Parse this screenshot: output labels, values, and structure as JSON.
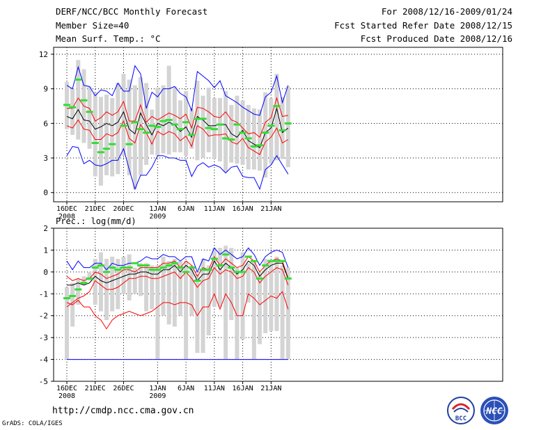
{
  "header": {
    "title": "DERF/NCC/BCC Monthly Forecast",
    "member_size": "Member Size=40",
    "variable1": "Mean Surf. Temp.: °C",
    "period": "For 2008/12/16-2009/01/24",
    "started": "Fcst Started Refer Date 2008/12/15",
    "produced": "Fcst Produced Date 2008/12/16"
  },
  "panel2_label": "Prec.: log(mm/d)",
  "footer": {
    "url": "http://cmdp.ncc.cma.gov.cn",
    "credit": "GrADS: COLA/IGES"
  },
  "logos": {
    "left": "BCC",
    "right": "NCC"
  },
  "colors": {
    "box": "#d4d4d4",
    "median": "#000000",
    "mid": "#ff0000",
    "outer": "#0000ff",
    "obs": "#33dd33"
  },
  "chart_data": [
    {
      "type": "box-ensemble",
      "title": "Mean Surf. Temp.: °C",
      "ylim": [
        -0.8,
        12.6
      ],
      "yticks": [
        0,
        3,
        6,
        9,
        12
      ],
      "x_ticks": [
        {
          "day": 0,
          "label": "16DEC",
          "sub": "2008"
        },
        {
          "day": 5,
          "label": "21DEC",
          "sub": ""
        },
        {
          "day": 10,
          "label": "26DEC",
          "sub": ""
        },
        {
          "day": 16,
          "label": "1JAN",
          "sub": "2009"
        },
        {
          "day": 21,
          "label": "6JAN",
          "sub": ""
        },
        {
          "day": 26,
          "label": "11JAN",
          "sub": ""
        },
        {
          "day": 31,
          "label": "16JAN",
          "sub": ""
        },
        {
          "day": 36,
          "label": "21JAN",
          "sub": ""
        }
      ],
      "box_low": [
        5.5,
        5.0,
        4.6,
        4.3,
        3.8,
        1.4,
        0.6,
        1.5,
        1.4,
        1.6,
        3.2,
        1.5,
        0.3,
        1.5,
        2.4,
        3.3,
        3.2,
        3.4,
        3.3,
        3.5,
        3.5,
        3.2,
        3.8,
        2.8,
        3.0,
        3.5,
        3.0,
        2.7,
        1.8,
        2.6,
        2.5,
        2.4,
        2.0,
        2.0,
        1.9,
        1.3,
        2.5,
        2.8,
        2.9,
        2.2
      ],
      "box_high": [
        9.6,
        9.0,
        11.5,
        10.7,
        9.2,
        8.7,
        8.3,
        8.5,
        8.2,
        9.5,
        10.3,
        9.8,
        9.3,
        10.0,
        9.5,
        7.2,
        9.1,
        9.3,
        11.0,
        9.2,
        8.0,
        8.8,
        7.3,
        9.7,
        8.4,
        9.1,
        8.2,
        8.2,
        8.8,
        7.6,
        8.4,
        8.0,
        7.6,
        7.3,
        7.2,
        8.7,
        8.2,
        10.3,
        8.3,
        9.2
      ],
      "upper_blue": [
        9.3,
        9.0,
        10.9,
        9.3,
        9.2,
        8.4,
        8.9,
        8.8,
        8.4,
        9.5,
        8.8,
        8.8,
        11.0,
        10.3,
        7.3,
        8.7,
        8.3,
        9.0,
        9.0,
        9.2,
        8.6,
        8.3,
        7.1,
        10.5,
        10.1,
        9.7,
        9.1,
        9.7,
        8.4,
        8.1,
        7.8,
        7.4,
        7.1,
        6.8,
        6.7,
        8.3,
        8.7,
        10.1,
        7.8,
        9.3
      ],
      "upper_red": [
        7.3,
        7.3,
        8.2,
        7.5,
        7.3,
        6.2,
        6.5,
        7.0,
        6.7,
        7.0,
        7.9,
        6.2,
        6.2,
        7.6,
        6.1,
        6.6,
        6.3,
        6.6,
        6.9,
        6.7,
        6.4,
        6.8,
        5.6,
        7.4,
        7.3,
        7.0,
        6.6,
        6.5,
        7.0,
        6.3,
        6.1,
        5.6,
        5.1,
        5.2,
        4.8,
        6.1,
        6.5,
        8.2,
        6.6,
        6.7
      ],
      "median": [
        6.6,
        6.4,
        7.2,
        6.3,
        6.2,
        5.5,
        5.7,
        6.0,
        5.8,
        6.1,
        7.0,
        5.5,
        5.1,
        6.9,
        5.9,
        5.0,
        6.0,
        5.8,
        6.1,
        5.9,
        5.3,
        5.7,
        4.8,
        6.6,
        6.3,
        5.8,
        5.8,
        5.9,
        5.9,
        5.1,
        4.8,
        5.4,
        4.5,
        4.2,
        3.9,
        5.2,
        5.6,
        7.3,
        5.2,
        5.6
      ],
      "lower_red": [
        5.8,
        5.6,
        6.3,
        5.5,
        5.4,
        4.6,
        4.6,
        5.1,
        4.9,
        5.2,
        6.2,
        4.7,
        4.3,
        5.9,
        5.2,
        4.2,
        5.3,
        5.0,
        5.3,
        5.1,
        4.5,
        4.9,
        4.0,
        5.8,
        5.5,
        4.9,
        5.0,
        5.0,
        5.1,
        4.4,
        4.2,
        4.7,
        3.9,
        3.6,
        3.3,
        4.4,
        4.8,
        5.6,
        4.3,
        4.6
      ],
      "lower_blue": [
        3.2,
        4.0,
        3.9,
        2.5,
        2.8,
        2.4,
        2.3,
        2.5,
        2.8,
        2.8,
        3.8,
        2.0,
        0.3,
        1.5,
        1.5,
        2.2,
        3.2,
        3.2,
        3.0,
        3.0,
        2.8,
        2.8,
        1.4,
        2.3,
        2.6,
        2.2,
        2.4,
        2.2,
        1.7,
        2.2,
        2.3,
        1.4,
        1.3,
        1.3,
        0.3,
        2.0,
        2.4,
        3.2,
        2.4,
        1.6
      ],
      "observed": [
        7.6,
        7.4,
        9.8,
        8.0,
        7.0,
        4.3,
        3.5,
        3.8,
        4.2,
        null,
        5.8,
        4.2,
        6.1,
        5.5,
        5.2,
        5.8,
        5.7,
        6.2,
        6.3,
        5.9,
        5.5,
        6.1,
        5.0,
        6.4,
        6.4,
        5.6,
        5.5,
        5.9,
        4.7,
        4.6,
        5.9,
        5.2,
        4.7,
        4.0,
        4.1,
        5.2,
        5.8,
        7.5,
        5.4,
        6.0
      ]
    },
    {
      "type": "box-ensemble",
      "title": "Prec.: log(mm/d)",
      "ylim": [
        -5,
        2
      ],
      "yticks": [
        -5,
        -4,
        -3,
        -2,
        -1,
        0,
        1,
        2
      ],
      "x_ticks": [
        {
          "day": 0,
          "label": "16DEC",
          "sub": "2008"
        },
        {
          "day": 5,
          "label": "21DEC",
          "sub": ""
        },
        {
          "day": 10,
          "label": "26DEC",
          "sub": ""
        },
        {
          "day": 16,
          "label": "1JAN",
          "sub": "2009"
        },
        {
          "day": 21,
          "label": "6JAN",
          "sub": ""
        },
        {
          "day": 26,
          "label": "11JAN",
          "sub": ""
        },
        {
          "day": 31,
          "label": "16JAN",
          "sub": ""
        },
        {
          "day": 36,
          "label": "21JAN",
          "sub": ""
        }
      ],
      "box_low": [
        -4,
        -2.5,
        -1.5,
        -0.6,
        -0.4,
        -1.5,
        -1.8,
        -2.2,
        -1.8,
        -1.7,
        -1.0,
        -1.3,
        -1.0,
        -1.1,
        -1.8,
        -1.7,
        -4,
        -2,
        -2.4,
        -2.5,
        -2,
        -4,
        -2,
        -3.7,
        -3.7,
        -2.9,
        -1.6,
        -1.6,
        -4,
        -2.2,
        -4,
        -3.1,
        -1.4,
        -4,
        -3.3,
        -2.8,
        -2.7,
        -2.7,
        -4,
        -4
      ],
      "box_high": [
        -0.7,
        -0.5,
        -0.3,
        -0.2,
        0.0,
        0.6,
        0.9,
        0.6,
        0.7,
        0.6,
        0.7,
        0.8,
        0.2,
        0.4,
        0.4,
        0.3,
        0.3,
        0.7,
        0.5,
        0.6,
        0.5,
        0.5,
        0.3,
        -0.1,
        0.6,
        0.3,
        1.1,
        1.1,
        1.2,
        1.1,
        0.2,
        0.9,
        0.4,
        0.5,
        0.0,
        0.6,
        0.5,
        0.7,
        0.3,
        0.2
      ],
      "upper_blue": [
        0.5,
        0.1,
        0.5,
        0.2,
        0.2,
        0.4,
        0.4,
        0.1,
        0.4,
        0.3,
        0.3,
        0.4,
        0.4,
        0.5,
        0.7,
        0.6,
        0.6,
        0.8,
        0.7,
        0.7,
        0.5,
        0.7,
        0.7,
        0.0,
        0.6,
        0.5,
        1.1,
        0.8,
        1.0,
        0.8,
        0.6,
        0.7,
        1.1,
        0.8,
        0.3,
        0.7,
        0.9,
        1.0,
        0.9,
        0.2
      ],
      "upper_red": [
        -0.2,
        -0.4,
        -0.3,
        -0.4,
        -0.3,
        0.0,
        -0.1,
        -0.3,
        -0.2,
        -0.1,
        0.1,
        0.1,
        0.0,
        0.2,
        0.2,
        0.2,
        0.2,
        0.4,
        0.4,
        0.5,
        0.2,
        0.5,
        0.3,
        -0.2,
        0.2,
        0.1,
        0.7,
        0.3,
        0.6,
        0.4,
        0.2,
        0.3,
        0.7,
        0.5,
        0.0,
        0.3,
        0.5,
        0.6,
        0.5,
        -0.3
      ],
      "median": [
        -0.6,
        -0.6,
        -0.5,
        -0.6,
        -0.5,
        -0.2,
        -0.4,
        -0.5,
        -0.4,
        -0.3,
        -0.2,
        -0.1,
        -0.1,
        0.0,
        0.0,
        -0.1,
        -0.1,
        0.1,
        0.1,
        0.3,
        0.0,
        0.3,
        0.1,
        -0.4,
        -0.1,
        -0.1,
        0.5,
        0.1,
        0.4,
        0.2,
        -0.1,
        0.1,
        0.5,
        0.3,
        -0.2,
        0.1,
        0.3,
        0.4,
        0.4,
        -0.3
      ],
      "lower_red": [
        -1.6,
        -1.4,
        -1.2,
        -1.1,
        -0.9,
        -0.4,
        -0.6,
        -0.8,
        -0.8,
        -0.7,
        -0.5,
        -0.3,
        -0.3,
        -0.2,
        -0.2,
        -0.3,
        -0.3,
        -0.2,
        -0.1,
        0.0,
        -0.3,
        0.0,
        -0.3,
        -0.7,
        -0.4,
        -0.3,
        0.2,
        -0.1,
        0.1,
        0.0,
        -0.3,
        -0.2,
        0.2,
        0.0,
        -0.5,
        -0.2,
        0.0,
        0.2,
        0.1,
        -0.6
      ],
      "lower_blue": [
        -4,
        -4,
        -4,
        -4,
        -4,
        -4,
        -4,
        -4,
        -4,
        -4,
        -4,
        -4,
        -4,
        -4,
        -4,
        -4,
        -4,
        -4,
        -4,
        -4,
        -4,
        -4,
        -4,
        -4,
        -4,
        -4,
        -4,
        -4,
        -4,
        -4,
        -4,
        -4,
        -4,
        -4,
        -4,
        -4,
        -4,
        -4,
        -4,
        -4
      ],
      "lowest_red": [
        -1.4,
        -1.5,
        -1.3,
        -1.6,
        -1.6,
        -2.0,
        -2.2,
        -2.6,
        -2.2,
        -2.0,
        -1.9,
        -1.8,
        -1.9,
        -2.0,
        -1.9,
        -1.8,
        -1.6,
        -1.4,
        -1.4,
        -1.5,
        -1.4,
        -1.4,
        -1.5,
        -2.0,
        -1.6,
        -1.6,
        -1.0,
        -1.7,
        -1.0,
        -1.4,
        -2.0,
        -2.0,
        -1.0,
        -1.2,
        -1.5,
        -1.3,
        -1.1,
        -1.2,
        -0.9,
        -1.7
      ],
      "observed": [
        -1.2,
        -1.1,
        -0.8,
        -0.5,
        -0.3,
        0.2,
        0.3,
        0.0,
        0.2,
        0.1,
        0.2,
        0.2,
        0.4,
        0.3,
        0.3,
        0.1,
        0.1,
        0.2,
        0.3,
        0.4,
        0.2,
        0.0,
        0.2,
        -0.4,
        0.1,
        0.1,
        0.6,
        0.3,
        0.8,
        0.2,
        0.0,
        0.0,
        0.7,
        0.5,
        -0.3,
        0.3,
        0.5,
        0.5,
        0.5,
        -0.3
      ]
    }
  ]
}
